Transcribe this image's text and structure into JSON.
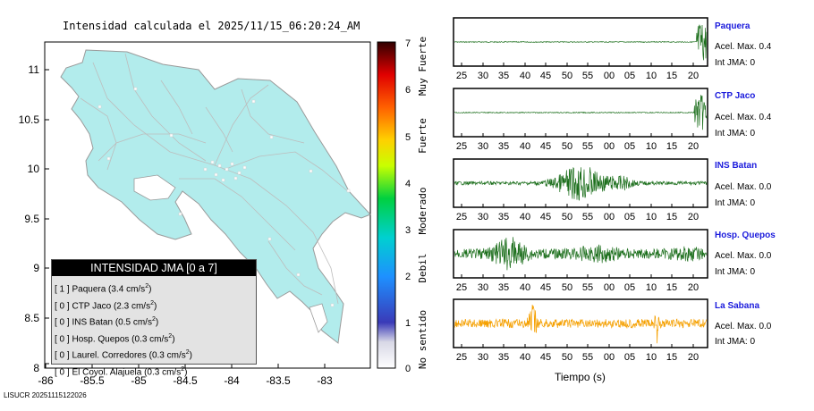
{
  "map": {
    "title": "Intensidad calculada el 2025/11/15_06:20:24_AM",
    "lat_ticks": [
      "11",
      "10.5",
      "10",
      "9.5",
      "9",
      "8.5",
      "8"
    ],
    "lon_ticks": [
      "-86",
      "-85.5",
      "-85",
      "-84.5",
      "-84",
      "-83.5",
      "-83"
    ],
    "credit": "LISUCR 20251115122026",
    "colors": {
      "land": "#b2ecec",
      "sea": "#ffffff",
      "border": "#999999",
      "roads": "#bdbdbd"
    }
  },
  "colorbar": {
    "values": [
      "7",
      "6",
      "5",
      "4",
      "3",
      "2",
      "1",
      "0"
    ],
    "labels": [
      "Muy Fuerte",
      "Fuerte",
      "Moderado",
      "Debil",
      "No sentido"
    ]
  },
  "legend": {
    "title": "INTENSIDAD JMA [0 a 7]",
    "unit_sup": "2",
    "items": [
      {
        "level": "[ 1 ]",
        "name": "Paquera (3.4 cm/s"
      },
      {
        "level": "[ 0 ]",
        "name": "CTP Jaco (2.3 cm/s"
      },
      {
        "level": "[ 0 ]",
        "name": "INS Batan (0.5 cm/s"
      },
      {
        "level": "[ 0 ]",
        "name": "Hosp. Quepos (0.3 cm/s"
      },
      {
        "level": "[ 0 ]",
        "name": "Laurel. Corredores (0.3 cm/s"
      },
      {
        "level": "[ 0 ]",
        "name": "El Coyol. Alajuela (0.3 cm/s"
      }
    ]
  },
  "waveforms": {
    "time_ticks": [
      "25",
      "30",
      "35",
      "40",
      "45",
      "50",
      "55",
      "00",
      "05",
      "10",
      "15",
      "20"
    ],
    "xlabel": "Tiempo (s)",
    "acc_label": "Acel. Max.",
    "int_label": "Int JMA:",
    "stations": [
      {
        "name": "Paquera",
        "acel_max": "0.4",
        "int_jma": "0",
        "color": "#1b6e1b"
      },
      {
        "name": "CTP Jaco",
        "acel_max": "0.4",
        "int_jma": "0",
        "color": "#1b6e1b"
      },
      {
        "name": "INS Batan",
        "acel_max": "0.0",
        "int_jma": "0",
        "color": "#1b6e1b"
      },
      {
        "name": "Hosp. Quepos",
        "acel_max": "0.0",
        "int_jma": "0",
        "color": "#1b6e1b"
      },
      {
        "name": "La Sabana",
        "acel_max": "0.0",
        "int_jma": "0",
        "color": "#f5a000"
      }
    ]
  }
}
